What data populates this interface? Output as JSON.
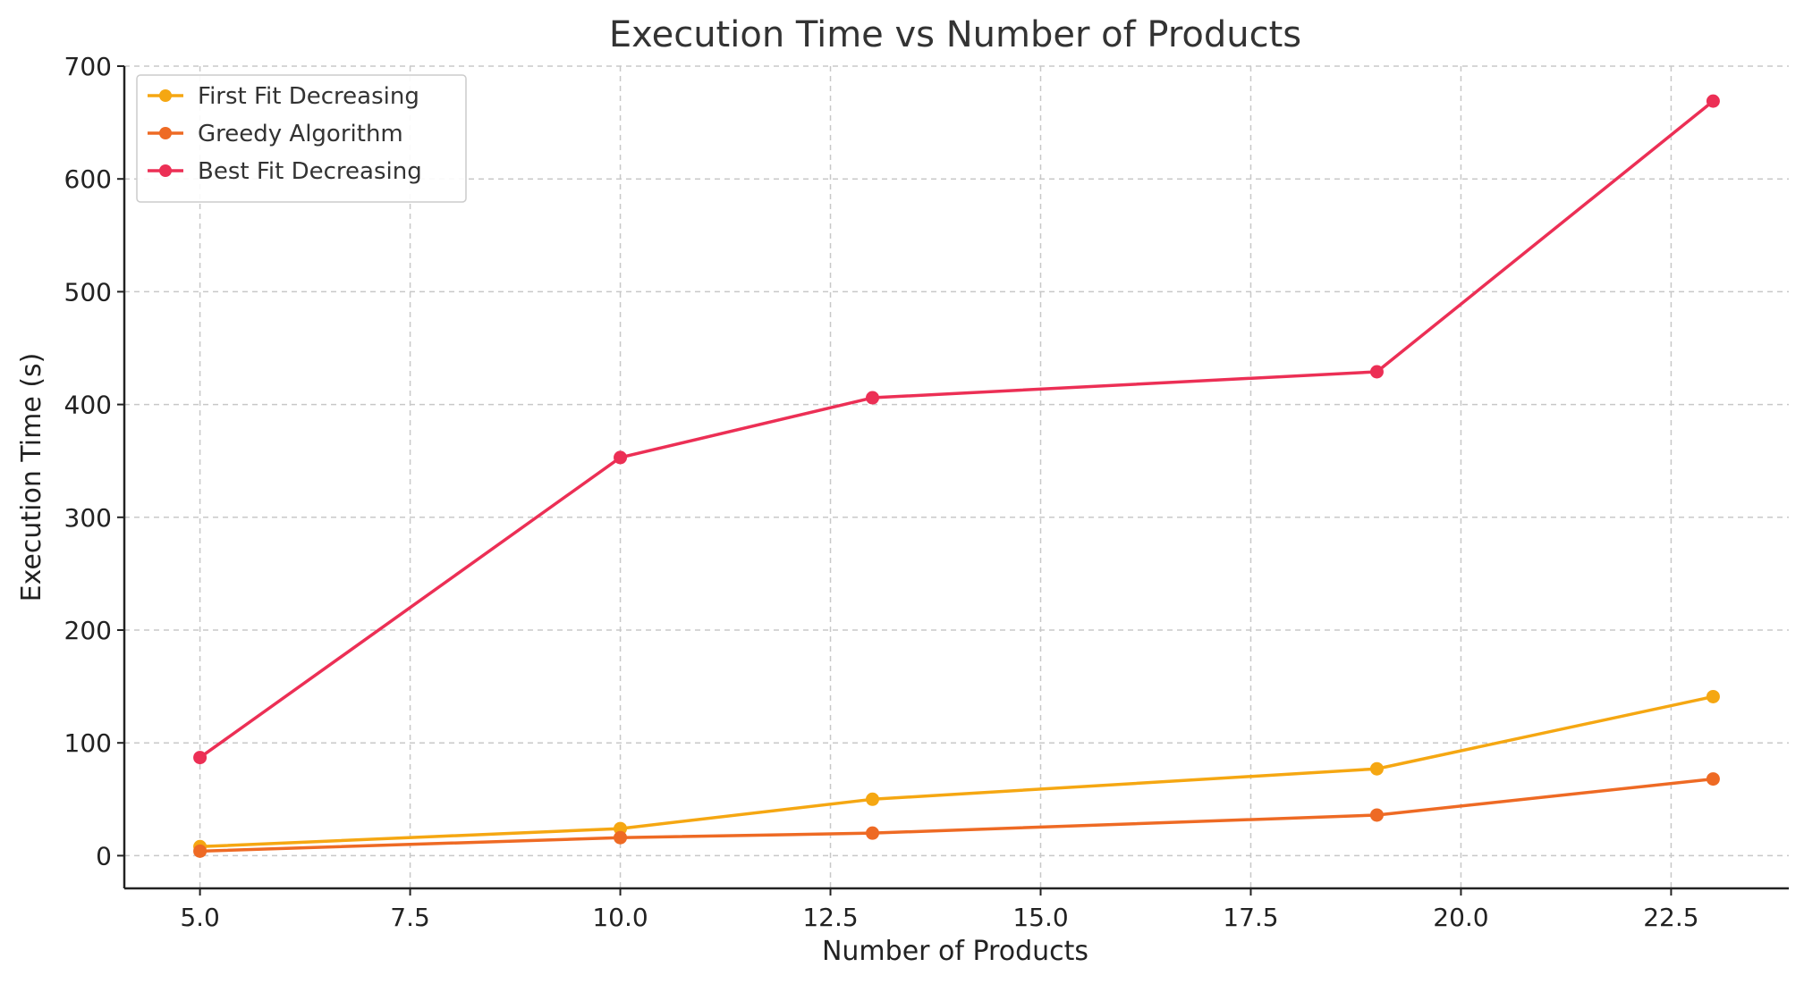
{
  "chart_data": {
    "type": "line",
    "title": "Execution Time vs Number of Products",
    "xlabel": "Number of Products",
    "ylabel": "Execution Time (s)",
    "x": [
      5,
      10,
      13,
      19,
      23
    ],
    "xlim": [
      4.1,
      23.9
    ],
    "ylim": [
      -29,
      700
    ],
    "xticks": [
      "5.0",
      "7.5",
      "10.0",
      "12.5",
      "15.0",
      "17.5",
      "20.0",
      "22.5"
    ],
    "xtick_values": [
      5,
      7.5,
      10,
      12.5,
      15,
      17.5,
      20,
      22.5
    ],
    "yticks": [
      "0",
      "100",
      "200",
      "300",
      "400",
      "500",
      "600",
      "700"
    ],
    "ytick_values": [
      0,
      100,
      200,
      300,
      400,
      500,
      600,
      700
    ],
    "grid": true,
    "legend_position": "top-left",
    "series": [
      {
        "name": "First Fit Decreasing",
        "color": "#f5a712",
        "values": [
          8,
          24,
          50,
          77,
          141
        ]
      },
      {
        "name": "Greedy Algorithm",
        "color": "#ee6a24",
        "values": [
          4,
          16,
          20,
          36,
          68
        ]
      },
      {
        "name": "Best Fit Decreasing",
        "color": "#ec2f55",
        "values": [
          87,
          353,
          406,
          429,
          669
        ]
      }
    ]
  }
}
